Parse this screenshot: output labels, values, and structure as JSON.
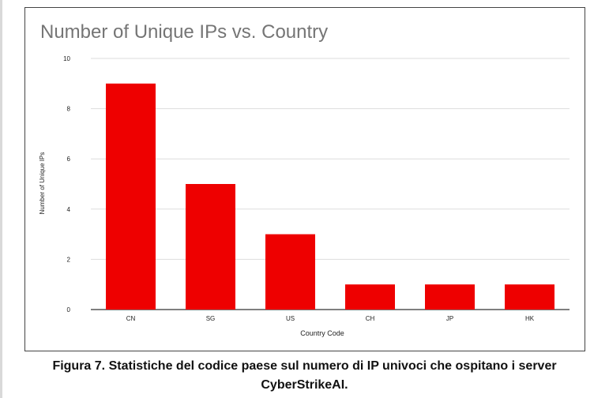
{
  "figure": {
    "caption_line1": "Figura 7. Statistiche del codice paese sul numero di IP univoci che ospitano i server",
    "caption_line2": "CyberStrikeAI."
  },
  "chart_data": {
    "type": "bar",
    "title": "Number of Unique IPs vs. Country",
    "xlabel": "Country Code",
    "ylabel": "Number of Unique IPs",
    "categories": [
      "CN",
      "SG",
      "US",
      "CH",
      "JP",
      "HK"
    ],
    "values": [
      9,
      5,
      3,
      1,
      1,
      1
    ],
    "ylim": [
      0,
      10
    ],
    "yticks": [
      0,
      2,
      4,
      6,
      8,
      10
    ],
    "grid": true,
    "bar_color": "#ee0000",
    "grid_color": "#dddddd",
    "title_color": "#757575"
  }
}
